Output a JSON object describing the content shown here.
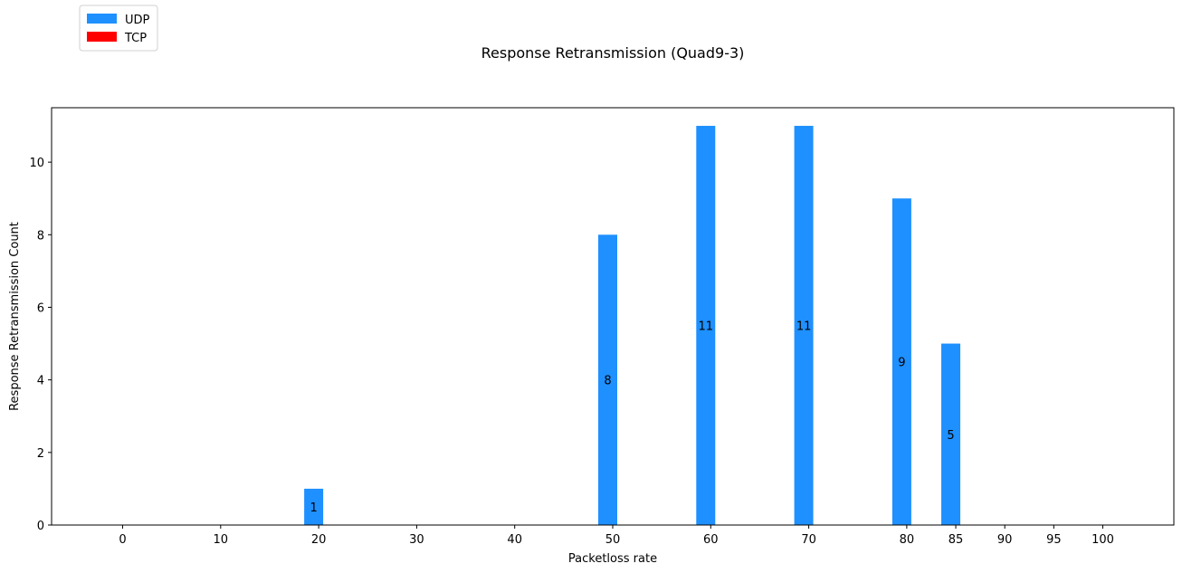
{
  "chart_data": {
    "type": "bar",
    "title": "Response Retransmission (Quad9-3)",
    "xlabel": "Packetloss rate",
    "ylabel": "Response Retransmission Count",
    "x_ticks": [
      0,
      10,
      20,
      30,
      40,
      50,
      60,
      70,
      80,
      85,
      90,
      95,
      100
    ],
    "y_ticks": [
      0,
      2,
      4,
      6,
      8,
      10
    ],
    "ylim": [
      0,
      11.5
    ],
    "xlim": [
      -7.25,
      107.25
    ],
    "legend_position": "upper-left-outside",
    "grid": false,
    "series": [
      {
        "name": "UDP",
        "color": "#1e90ff",
        "x": [
          0,
          10,
          20,
          30,
          40,
          50,
          60,
          70,
          80,
          85,
          90,
          95,
          100
        ],
        "values": [
          0,
          0,
          1,
          0,
          0,
          8,
          11,
          11,
          9,
          5,
          0,
          0,
          0
        ],
        "labels": [
          "",
          "",
          "1",
          "",
          "",
          "8",
          "11",
          "11",
          "9",
          "5",
          "",
          "",
          ""
        ]
      },
      {
        "name": "TCP",
        "color": "#ff0000",
        "x": [
          0,
          10,
          20,
          30,
          40,
          50,
          60,
          70,
          80,
          85,
          90,
          95,
          100
        ],
        "values": [
          0,
          0,
          0,
          0,
          0,
          0,
          0,
          0,
          0,
          0,
          0,
          0,
          0
        ]
      }
    ]
  }
}
